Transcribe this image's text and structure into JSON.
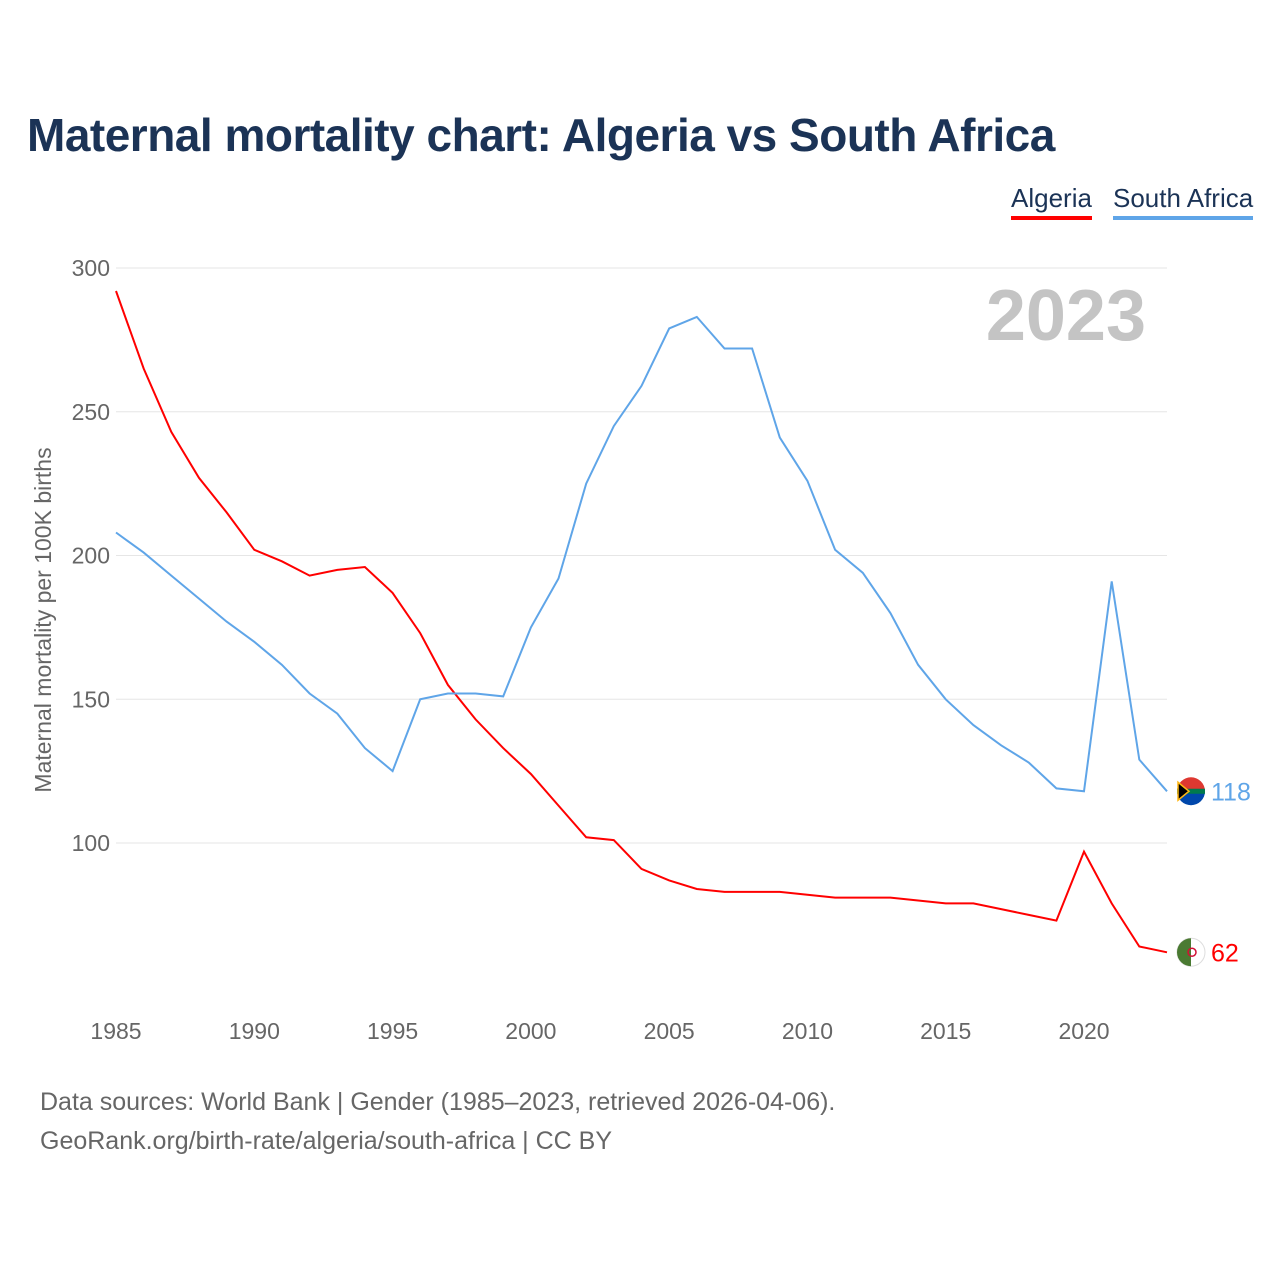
{
  "chart_data": {
    "type": "line",
    "title": "Maternal mortality chart: Algeria vs South Africa",
    "ylabel": "Maternal mortality per 100K births",
    "xlabel": "",
    "year_watermark": "2023",
    "ylim": [
      40,
      300
    ],
    "xlim": [
      1985,
      2023
    ],
    "yticks": [
      100,
      150,
      200,
      250,
      300
    ],
    "xticks": [
      1985,
      1990,
      1995,
      2000,
      2005,
      2010,
      2015,
      2020
    ],
    "grid": true,
    "legend_position": "top-right",
    "x": [
      1985,
      1986,
      1987,
      1988,
      1989,
      1990,
      1991,
      1992,
      1993,
      1994,
      1995,
      1996,
      1997,
      1998,
      1999,
      2000,
      2001,
      2002,
      2003,
      2004,
      2005,
      2006,
      2007,
      2008,
      2009,
      2010,
      2011,
      2012,
      2013,
      2014,
      2015,
      2016,
      2017,
      2018,
      2019,
      2020,
      2021,
      2022,
      2023
    ],
    "series": [
      {
        "name": "Algeria",
        "color": "#ff0000",
        "end_label": "62",
        "values": [
          292,
          265,
          243,
          227,
          215,
          202,
          198,
          193,
          195,
          196,
          187,
          173,
          155,
          143,
          133,
          124,
          113,
          102,
          101,
          91,
          87,
          84,
          83,
          83,
          83,
          82,
          81,
          81,
          81,
          80,
          79,
          79,
          77,
          75,
          73,
          97,
          79,
          64,
          62
        ]
      },
      {
        "name": "South Africa",
        "color": "#5fa5e8",
        "end_label": "118",
        "values": [
          208,
          201,
          193,
          185,
          177,
          170,
          162,
          152,
          145,
          133,
          125,
          150,
          152,
          152,
          151,
          175,
          192,
          225,
          245,
          259,
          279,
          283,
          272,
          272,
          241,
          226,
          202,
          194,
          180,
          162,
          150,
          141,
          134,
          128,
          119,
          118,
          191,
          129,
          118
        ]
      }
    ]
  },
  "footer": {
    "line1": "Data sources: World Bank | Gender (1985–2023, retrieved 2026-04-06).",
    "line2": "GeoRank.org/birth-rate/algeria/south-africa | CC BY"
  }
}
